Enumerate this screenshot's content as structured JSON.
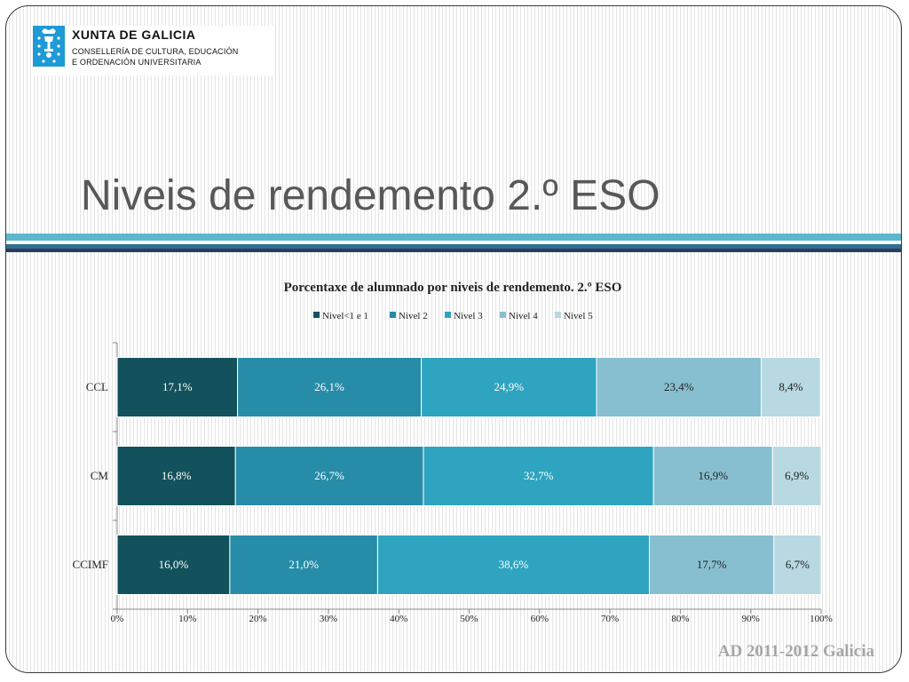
{
  "logo": {
    "name": "XUNTA DE GALICIA",
    "line1": "CONSELLERÍA DE CULTURA, EDUCACIÓN",
    "line2": "E ORDENACIÓN UNIVERSITARIA",
    "icon": "galicia-coat-of-arms-icon",
    "color": "#1e9ad6"
  },
  "slide_title": "Niveis de rendemento 2.º ESO",
  "footer": "AD 2011-2012 Galicia",
  "chart_data": {
    "type": "bar",
    "orientation": "horizontal",
    "stacked": "percent",
    "title": "Porcentaxe de alumnado por niveis de rendemento. 2.º ESO",
    "legend_position": "top",
    "categories": [
      "CCL",
      "CM",
      "CCIMF"
    ],
    "series": [
      {
        "name": "Nivel<1 e 1",
        "color": "#13525c",
        "values": [
          17.1,
          16.8,
          16.0
        ],
        "labels": [
          "17,1%",
          "16,8%",
          "16,0%"
        ]
      },
      {
        "name": "Nivel 2",
        "color": "#268ca8",
        "values": [
          26.1,
          26.7,
          21.0
        ],
        "labels": [
          "26,1%",
          "26,7%",
          "21,0%"
        ]
      },
      {
        "name": "Nivel 3",
        "color": "#2ea4c0",
        "values": [
          24.9,
          32.7,
          38.6
        ],
        "labels": [
          "24,9%",
          "32,7%",
          "38,6%"
        ]
      },
      {
        "name": "Nivel 4",
        "color": "#88bfd0",
        "values": [
          23.4,
          16.9,
          17.7
        ],
        "labels": [
          "23,4%",
          "16,9%",
          "17,7%"
        ]
      },
      {
        "name": "Nivel 5",
        "color": "#b8d8e2",
        "values": [
          8.4,
          6.9,
          6.7
        ],
        "labels": [
          "8,4%",
          "6,9%",
          "6,7%"
        ]
      }
    ],
    "x_ticks": [
      "0%",
      "10%",
      "20%",
      "30%",
      "40%",
      "50%",
      "60%",
      "70%",
      "80%",
      "90%",
      "100%"
    ],
    "xlim": [
      0,
      100
    ],
    "grid": false
  }
}
